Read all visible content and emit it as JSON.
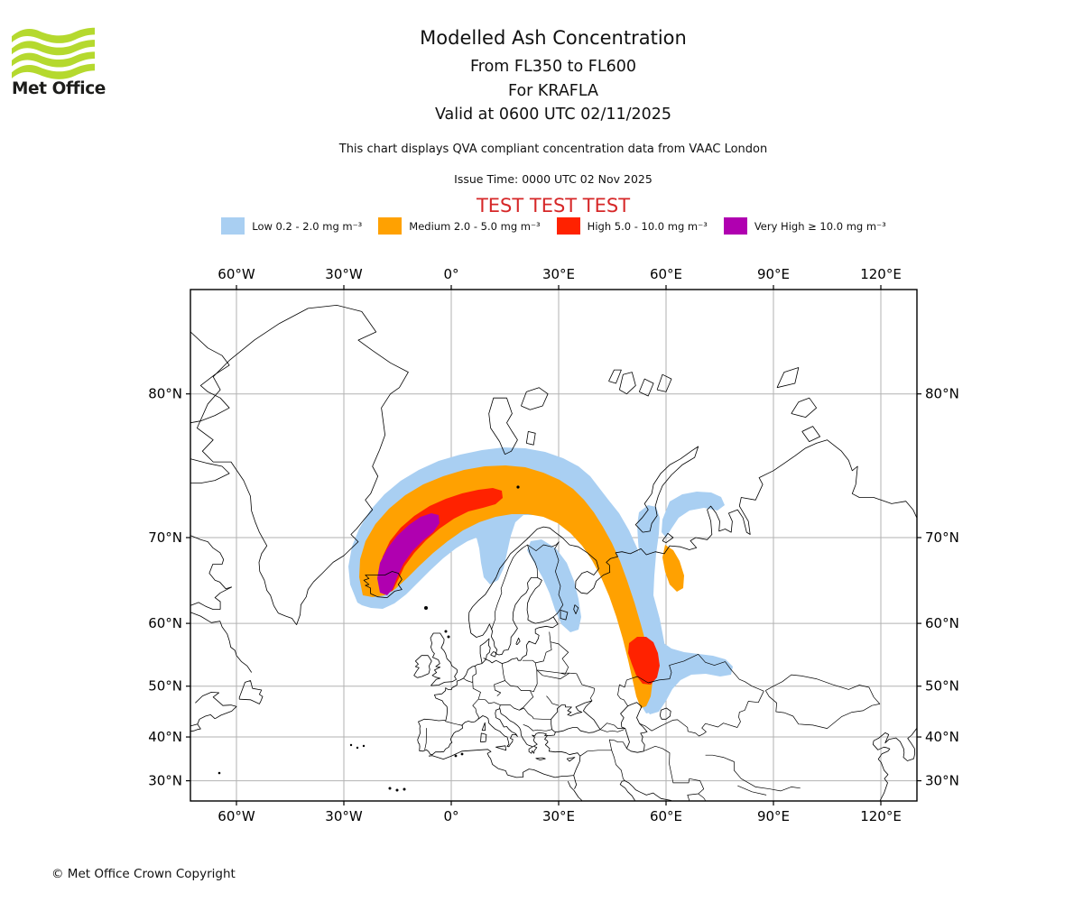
{
  "header": {
    "logo_text": "Met Office",
    "logo_wave_color": "#b5d92e",
    "title_line1": "Modelled Ash Concentration",
    "title_line2": "From FL350 to FL600",
    "title_line3": "For KRAFLA",
    "title_line4": "Valid at 0600 UTC 02/11/2025",
    "subtitle": "This chart displays QVA compliant concentration data from VAAC London",
    "issue_time": "Issue Time: 0000 UTC 02 Nov 2025",
    "test_banner": "TEST TEST TEST",
    "test_banner_color": "#d62728"
  },
  "legend": {
    "items": [
      {
        "name": "low",
        "label": "Low 0.2 - 2.0 mg m⁻³",
        "color": "#a9cff2"
      },
      {
        "name": "medium",
        "label": "Medium 2.0 - 5.0 mg m⁻³",
        "color": "#ffa101"
      },
      {
        "name": "high",
        "label": "High 5.0 - 10.0 mg m⁻³",
        "color": "#ff2200"
      },
      {
        "name": "very-high",
        "label": "Very High ≥ 10.0 mg m⁻³",
        "color": "#b000b0"
      }
    ]
  },
  "map": {
    "lon_ticks": [
      {
        "v": -60,
        "label": "60°W"
      },
      {
        "v": -30,
        "label": "30°W"
      },
      {
        "v": 0,
        "label": "0°"
      },
      {
        "v": 30,
        "label": "30°E"
      },
      {
        "v": 60,
        "label": "60°E"
      },
      {
        "v": 90,
        "label": "90°E"
      },
      {
        "v": 120,
        "label": "120°E"
      }
    ],
    "lat_ticks": [
      {
        "v": 80,
        "label": "80°N"
      },
      {
        "v": 70,
        "label": "70°N"
      },
      {
        "v": 60,
        "label": "60°N"
      },
      {
        "v": 50,
        "label": "50°N"
      },
      {
        "v": 40,
        "label": "40°N"
      },
      {
        "v": 30,
        "label": "30°N"
      }
    ],
    "grid_color": "#b2b2b2",
    "coast_color": "#000000",
    "volcano_marker": "KRAFLA source (Iceland)"
  },
  "footer": {
    "copyright": "© Met Office Crown Copyright"
  },
  "chart_data": {
    "type": "area",
    "title": "Modelled Ash Concentration From FL350 to FL600 For KRAFLA Valid at 0600 UTC 02/11/2025",
    "subtitle": "This chart displays QVA compliant concentration data from VAAC London",
    "issue_time": "0000 UTC 02 Nov 2025",
    "projection": "mercator",
    "lon_range": [
      -72.8,
      130.0
    ],
    "lat_range": [
      25.0,
      84.0
    ],
    "x_tick_labels": [
      "60°W",
      "30°W",
      "0°",
      "30°E",
      "60°E",
      "90°E",
      "120°E"
    ],
    "y_tick_labels": [
      "30°N",
      "40°N",
      "50°N",
      "60°N",
      "70°N",
      "80°N"
    ],
    "grid": true,
    "legend_position": "top",
    "series": [
      {
        "name": "Low 0.2 - 2.0 mg m⁻³",
        "color": "#a9cff2",
        "description": "Broad arc from Iceland over the Norwegian Sea and northern Scandinavia, trailing southeast across northwest Russia to about 50°N 57°E with a hook toward 52°N 75°E"
      },
      {
        "name": "Medium 2.0 - 5.0 mg m⁻³",
        "color": "#ffa101",
        "description": "Band inside the low arc from Iceland to northern Scandinavia and down the southeast tail to about 51°N 55°E"
      },
      {
        "name": "High 5.0 - 10.0 mg m⁻³",
        "color": "#ff2200",
        "description": "Elongated core northeast of Iceland (about 64-72°N, 20°W-10°E) and a secondary maximum near 54°N 56°E"
      },
      {
        "name": "Very High ≥ 10.0 mg m⁻³",
        "color": "#b000b0",
        "description": "Dense core directly over and northeast of Iceland near the KRAFLA source"
      }
    ],
    "source_marker": {
      "name": "KRAFLA",
      "lat": 65.7,
      "lon": -16.8
    }
  }
}
